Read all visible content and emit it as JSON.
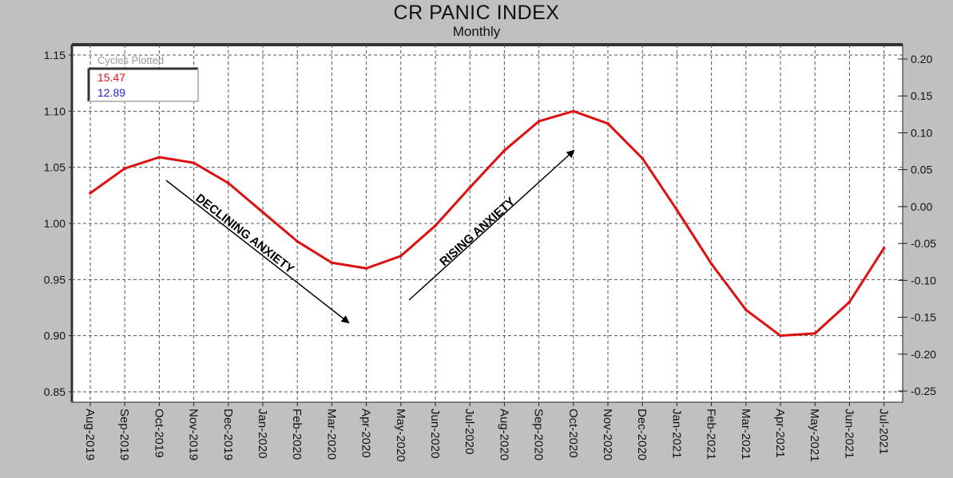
{
  "chart_data": {
    "type": "line",
    "title": "CR PANIC INDEX",
    "subtitle": "Monthly",
    "categories": [
      "Aug-2019",
      "Sep-2019",
      "Oct-2019",
      "Nov-2019",
      "Dec-2019",
      "Jan-2020",
      "Feb-2020",
      "Mar-2020",
      "Apr-2020",
      "May-2020",
      "Jun-2020",
      "Jul-2020",
      "Aug-2020",
      "Sep-2020",
      "Oct-2020",
      "Nov-2020",
      "Dec-2020",
      "Jan-2021",
      "Feb-2021",
      "Mar-2021",
      "Apr-2021",
      "May-2021",
      "Jun-2021",
      "Jul-2021"
    ],
    "series": [
      {
        "color": "#dd1111",
        "values": [
          1.027,
          1.049,
          1.059,
          1.054,
          1.036,
          1.01,
          0.984,
          0.965,
          0.96,
          0.971,
          0.998,
          1.032,
          1.065,
          1.091,
          1.1,
          1.089,
          1.058,
          1.012,
          0.964,
          0.923,
          0.9,
          0.902,
          0.93,
          0.978
        ]
      }
    ],
    "ylim": [
      0.85,
      1.15
    ],
    "yticks": [
      "0.85",
      "0.90",
      "0.95",
      "1.00",
      "1.05",
      "1.10",
      "1.15"
    ],
    "y2lim": [
      -0.25,
      0.2
    ],
    "y2ticks": [
      "-0.25",
      "-0.20",
      "-0.15",
      "-0.10",
      "-0.05",
      "0.00",
      "0.05",
      "0.10",
      "0.15",
      "0.20"
    ],
    "grid": true,
    "legend": {
      "title": "Cycles Plotted",
      "entries": [
        {
          "label": "15.47",
          "color": "#dd1111"
        },
        {
          "label": "12.89",
          "color": "#2222cc"
        }
      ],
      "placement": "top-left"
    },
    "annotations": [
      {
        "text": "DECLINING ANXIETY",
        "direction": "down"
      },
      {
        "text": "RISING ANXIETY",
        "direction": "up"
      }
    ]
  }
}
